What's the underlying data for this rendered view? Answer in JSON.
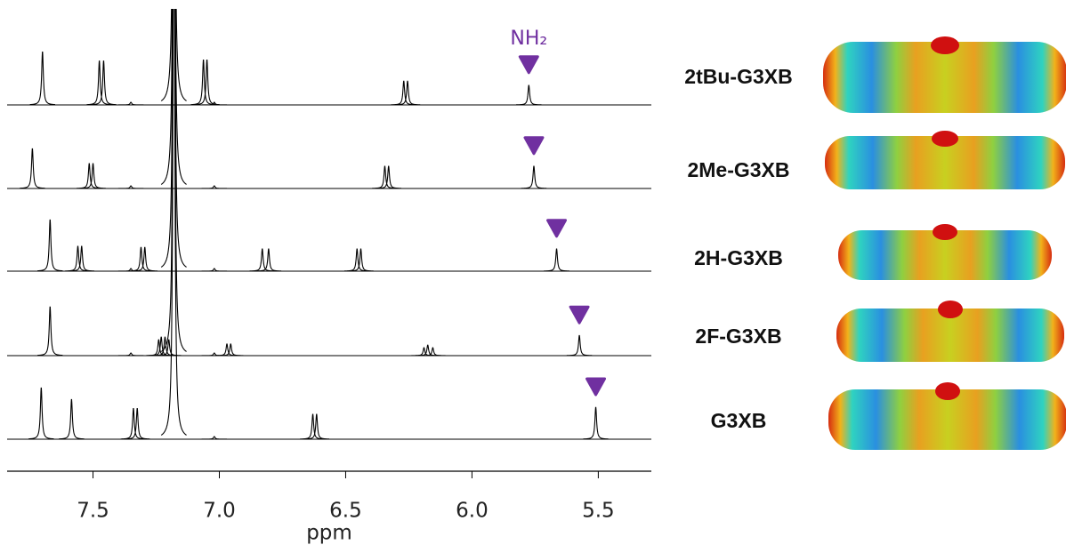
{
  "chart_data": {
    "type": "stacked-spectra",
    "x_label": "ppm",
    "xlim": [
      7.84,
      5.29
    ],
    "xticks": [
      7.5,
      {
        "value": 7,
        "label": "7.0"
      },
      6.5,
      {
        "value": 6,
        "label": "6.0"
      },
      5.5
    ],
    "annotation": "NH₂",
    "marker_color": "#7030a0",
    "series": [
      {
        "name": "2tBu-G3XB",
        "color": "#000000",
        "peaks": [
          7.7,
          7.475,
          7.458,
          7.35,
          7.18,
          7.063,
          7.049,
          7.02,
          6.27,
          6.255,
          5.775
        ],
        "heights": [
          1.0,
          0.83,
          0.83,
          0.05,
          12,
          0.85,
          0.85,
          0.05,
          0.45,
          0.45,
          0.37
        ]
      },
      {
        "name": "2Me-G3XB",
        "color": "#000000",
        "peaks": [
          7.74,
          7.515,
          7.5,
          7.35,
          7.18,
          7.02,
          6.345,
          6.33,
          5.755
        ],
        "heights": [
          0.75,
          0.47,
          0.47,
          0.05,
          12,
          0.05,
          0.42,
          0.42,
          0.42
        ]
      },
      {
        "name": "2H-G3XB",
        "color": "#000000",
        "peaks": [
          7.67,
          7.56,
          7.545,
          7.35,
          7.31,
          7.295,
          7.18,
          7.02,
          6.83,
          6.805,
          6.455,
          6.44,
          5.665
        ],
        "heights": [
          0.97,
          0.47,
          0.47,
          0.05,
          0.45,
          0.45,
          12,
          0.05,
          0.42,
          0.42,
          0.42,
          0.42,
          0.42
        ]
      },
      {
        "name": "2F-G3XB",
        "color": "#000000",
        "peaks": [
          7.67,
          7.35,
          7.24,
          7.23,
          7.215,
          7.2,
          7.18,
          7.02,
          6.97,
          6.955,
          6.19,
          6.175,
          6.155,
          5.575
        ],
        "heights": [
          0.92,
          0.05,
          0.3,
          0.35,
          0.35,
          0.3,
          12,
          0.05,
          0.22,
          0.22,
          0.15,
          0.2,
          0.15,
          0.38
        ]
      },
      {
        "name": "G3XB",
        "color": "#000000",
        "peaks": [
          7.705,
          7.585,
          7.34,
          7.325,
          7.18,
          7.02,
          6.63,
          6.615,
          5.51
        ],
        "heights": [
          0.97,
          0.75,
          0.58,
          0.58,
          12,
          0.05,
          0.47,
          0.47,
          0.6
        ]
      }
    ]
  }
}
